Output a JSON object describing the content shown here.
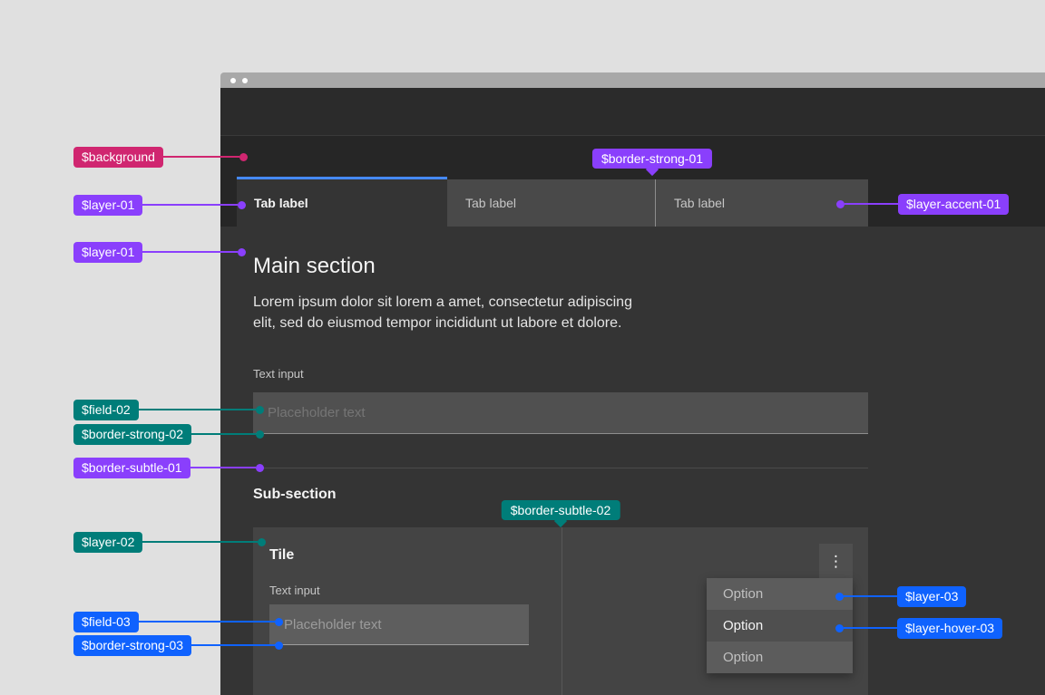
{
  "page": {
    "background_color": "#e0e0e0"
  },
  "theme": {
    "background": "#262626",
    "layer_01": "#343434",
    "layer_02": "#444444",
    "layer_03": "#5c5c5c",
    "layer_hover_03": "#4f4f4f",
    "layer_accent_01": "#494949",
    "field_02": "#505050",
    "field_03": "#5e5e5e",
    "border_interactive": "#4589ff",
    "border_strong_01": "#8d8d8d",
    "border_strong_02": "#8d8d8d",
    "border_strong_03": "#9e9e9e",
    "border_subtle_01": "#4b4b4b",
    "border_subtle_02": "#575757"
  },
  "window": {
    "tabs": [
      {
        "label": "Tab label",
        "state": "selected"
      },
      {
        "label": "Tab label",
        "state": "default"
      },
      {
        "label": "Tab label",
        "state": "default"
      }
    ],
    "main": {
      "heading": "Main section",
      "paragraph_lines": [
        "Lorem ipsum dolor sit lorem a amet, consectetur adipiscing",
        "elit, sed do eiusmod tempor incididunt ut labore et dolore."
      ],
      "text_input": {
        "label": "Text input",
        "placeholder": "Placeholder text"
      }
    },
    "subsection": {
      "heading": "Sub-section",
      "tile": {
        "heading": "Tile",
        "text_input": {
          "label": "Text input",
          "placeholder": "Placeholder text"
        },
        "overflow_menu": {
          "icon": "overflow-menu-vertical",
          "glyph": "⋮"
        },
        "menu_options": [
          {
            "label": "Option",
            "state": "default"
          },
          {
            "label": "Option",
            "state": "hover"
          },
          {
            "label": "Option",
            "state": "default"
          }
        ]
      }
    }
  },
  "annotations": [
    {
      "label": "$background",
      "color": "#d02670"
    },
    {
      "label": "$layer-01",
      "color": "#8a3ffc"
    },
    {
      "label": "$layer-01",
      "color": "#8a3ffc"
    },
    {
      "label": "$border-strong-01",
      "color": "#8a3ffc"
    },
    {
      "label": "$layer-accent-01",
      "color": "#8a3ffc"
    },
    {
      "label": "$field-02",
      "color": "#007d79"
    },
    {
      "label": "$border-strong-02",
      "color": "#007d79"
    },
    {
      "label": "$border-subtle-01",
      "color": "#8a3ffc"
    },
    {
      "label": "$layer-02",
      "color": "#007d79"
    },
    {
      "label": "$border-subtle-02",
      "color": "#007d79"
    },
    {
      "label": "$field-03",
      "color": "#0f62fe"
    },
    {
      "label": "$border-strong-03",
      "color": "#0f62fe"
    },
    {
      "label": "$layer-03",
      "color": "#0f62fe"
    },
    {
      "label": "$layer-hover-03",
      "color": "#0f62fe"
    }
  ]
}
